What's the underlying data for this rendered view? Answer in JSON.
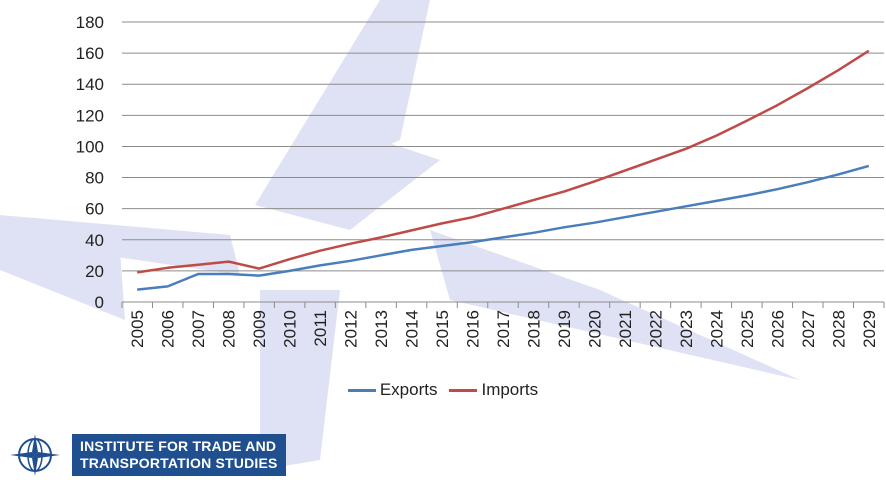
{
  "chart_data": {
    "type": "line",
    "title": "",
    "xlabel": "",
    "ylabel": "",
    "ylim": [
      0,
      180
    ],
    "y_ticks": [
      0,
      20,
      40,
      60,
      80,
      100,
      120,
      140,
      160,
      180
    ],
    "grid": true,
    "legend_position": "bottom",
    "categories": [
      "2005",
      "2006",
      "2007",
      "2008",
      "2009",
      "2010",
      "2011",
      "2012",
      "2013",
      "2014",
      "2015",
      "2016",
      "2017",
      "2018",
      "2019",
      "2020",
      "2021",
      "2022",
      "2023",
      "2024",
      "2025",
      "2026",
      "2027",
      "2028",
      "2029"
    ],
    "series": [
      {
        "name": "Exports",
        "color": "#4a7ebb",
        "values": [
          8,
          10,
          18,
          18,
          17,
          20,
          23.5,
          26.5,
          30,
          33.5,
          36,
          38.5,
          41.5,
          44.5,
          48,
          51,
          54.5,
          58,
          61.5,
          65,
          68.5,
          72.5,
          77,
          82,
          87.5
        ]
      },
      {
        "name": "Imports",
        "color": "#be4b48",
        "values": [
          19,
          22,
          24,
          26,
          21.5,
          27.5,
          33,
          37.5,
          41.5,
          46,
          50.5,
          54.5,
          60,
          65.5,
          71,
          77.5,
          84.5,
          91.5,
          98.5,
          107,
          116.5,
          126.5,
          137.5,
          149,
          161.5
        ]
      }
    ]
  },
  "logo": {
    "line1": "INSTITUTE FOR TRADE AND",
    "line2": "TRANSPORTATION STUDIES",
    "icon": "compass-globe-icon"
  }
}
